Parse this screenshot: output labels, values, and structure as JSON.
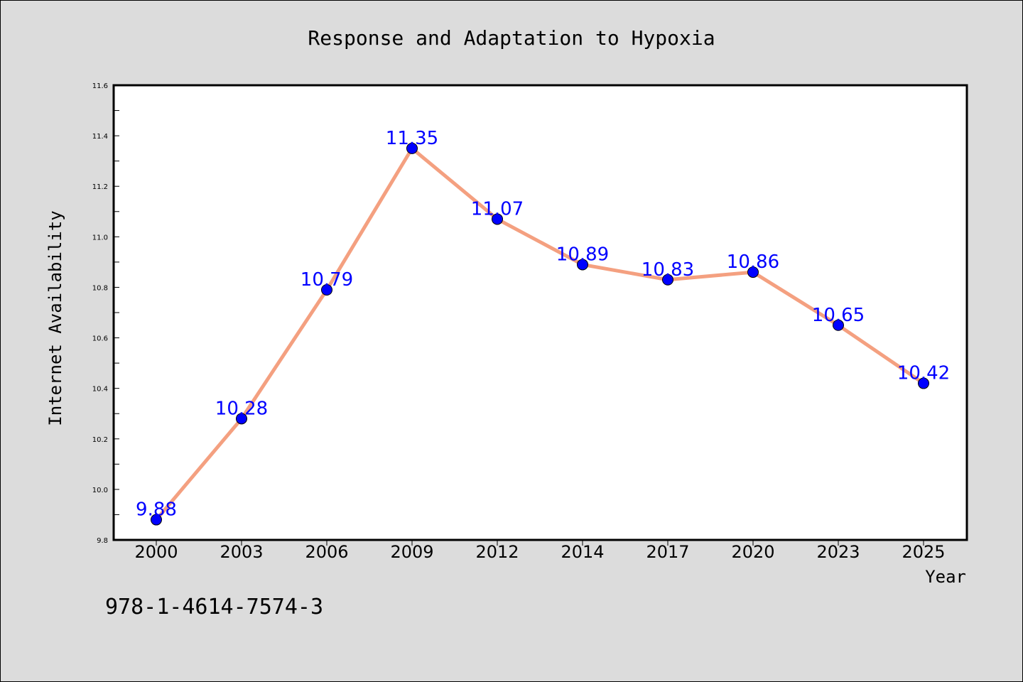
{
  "chart_data": {
    "type": "line",
    "title": "Response and Adaptation to Hypoxia",
    "xlabel": "Year",
    "ylabel": "Internet Availability",
    "categories": [
      "2000",
      "2003",
      "2006",
      "2009",
      "2012",
      "2014",
      "2017",
      "2020",
      "2023",
      "2025"
    ],
    "values": [
      9.88,
      10.28,
      10.79,
      11.35,
      11.07,
      10.89,
      10.83,
      10.86,
      10.65,
      10.42
    ],
    "data_labels": [
      "9.88",
      "10.28",
      "10.79",
      "11.35",
      "11.07",
      "10.89",
      "10.83",
      "10.86",
      "10.65",
      "10.42"
    ],
    "ylim": [
      9.8,
      11.6
    ],
    "yticks": [
      "9.8",
      "10.0",
      "10.2",
      "10.4",
      "10.6",
      "10.8",
      "11.0",
      "11.2",
      "11.4",
      "11.6"
    ],
    "grid": false,
    "legend": "none",
    "colors": {
      "line": "#f4a080",
      "marker": "#0000ff",
      "label": "#0000ff",
      "plot_bg": "#ffffff",
      "page_bg": "#dcdcdc"
    }
  },
  "footer": {
    "text": "978-1-4614-7574-3"
  }
}
